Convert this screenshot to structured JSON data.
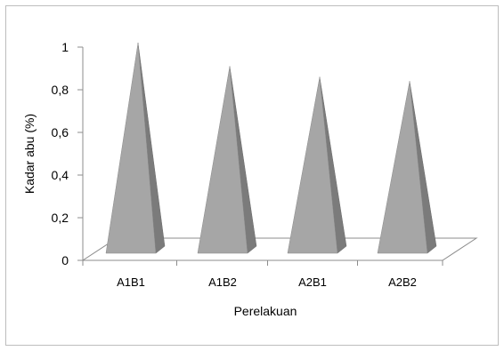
{
  "chart_data": {
    "type": "bar",
    "style": "3d-pyramid",
    "categories": [
      "A1B1",
      "A1B2",
      "A2B1",
      "A2B2"
    ],
    "values": [
      1.02,
      0.91,
      0.86,
      0.84
    ],
    "xlabel": "Perelakuan",
    "ylabel": "Kadar abu (%)",
    "ylim": [
      0,
      1
    ],
    "yticks": [
      "0",
      "0,2",
      "0,4",
      "0,6",
      "0,8",
      "1"
    ],
    "grid": false,
    "legend": "none",
    "colors": {
      "front": "#a6a6a6",
      "side": "#7b7b7b",
      "floor": "#ffffff",
      "axis": "#8c8c8c"
    }
  }
}
